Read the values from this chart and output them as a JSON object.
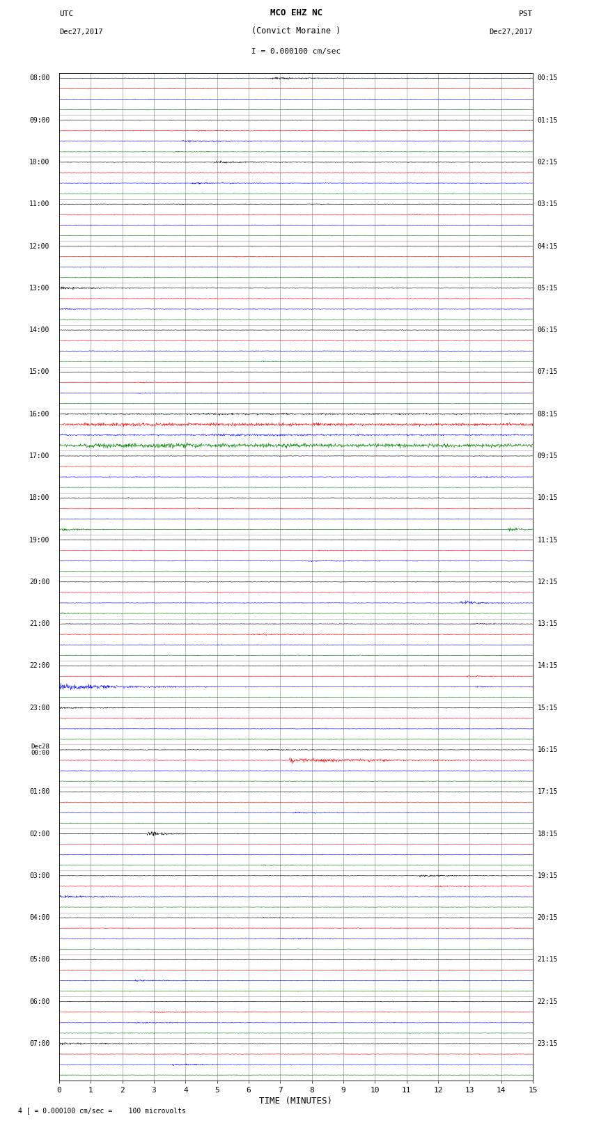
{
  "title_line1": "MCO EHZ NC",
  "title_line2": "(Convict Moraine )",
  "title_line3": "I = 0.000100 cm/sec",
  "label_left_top": "UTC",
  "label_left_date": "Dec27,2017",
  "label_right_top": "PST",
  "label_right_date": "Dec27,2017",
  "xlabel": "TIME (MINUTES)",
  "footer": "4 [ = 0.000100 cm/sec =    100 microvolts",
  "xlim": [
    0,
    15
  ],
  "xticks": [
    0,
    1,
    2,
    3,
    4,
    5,
    6,
    7,
    8,
    9,
    10,
    11,
    12,
    13,
    14,
    15
  ],
  "colors": [
    "black",
    "red",
    "blue",
    "green"
  ],
  "bg_color": "#ffffff",
  "n_hours": 24,
  "traces_per_hour": 4,
  "noise_base": 0.012,
  "seed": 42,
  "left_labels": [
    [
      "08:00",
      0
    ],
    [
      "09:00",
      4
    ],
    [
      "10:00",
      8
    ],
    [
      "11:00",
      12
    ],
    [
      "12:00",
      16
    ],
    [
      "13:00",
      20
    ],
    [
      "14:00",
      24
    ],
    [
      "15:00",
      28
    ],
    [
      "16:00",
      32
    ],
    [
      "17:00",
      36
    ],
    [
      "18:00",
      40
    ],
    [
      "19:00",
      44
    ],
    [
      "20:00",
      48
    ],
    [
      "21:00",
      52
    ],
    [
      "22:00",
      56
    ],
    [
      "23:00",
      60
    ],
    [
      "Dec28\n00:00",
      64
    ],
    [
      "01:00",
      68
    ],
    [
      "02:00",
      72
    ],
    [
      "03:00",
      76
    ],
    [
      "04:00",
      80
    ],
    [
      "05:00",
      84
    ],
    [
      "06:00",
      88
    ],
    [
      "07:00",
      92
    ]
  ],
  "right_labels": [
    [
      "00:15",
      0
    ],
    [
      "01:15",
      4
    ],
    [
      "02:15",
      8
    ],
    [
      "03:15",
      12
    ],
    [
      "04:15",
      16
    ],
    [
      "05:15",
      20
    ],
    [
      "06:15",
      24
    ],
    [
      "07:15",
      28
    ],
    [
      "08:15",
      32
    ],
    [
      "09:15",
      36
    ],
    [
      "10:15",
      40
    ],
    [
      "11:15",
      44
    ],
    [
      "12:15",
      48
    ],
    [
      "13:15",
      52
    ],
    [
      "14:15",
      56
    ],
    [
      "15:15",
      60
    ],
    [
      "16:15",
      64
    ],
    [
      "17:15",
      68
    ],
    [
      "18:15",
      72
    ],
    [
      "19:15",
      76
    ],
    [
      "20:15",
      80
    ],
    [
      "21:15",
      84
    ],
    [
      "22:15",
      88
    ],
    [
      "23:15",
      92
    ]
  ]
}
